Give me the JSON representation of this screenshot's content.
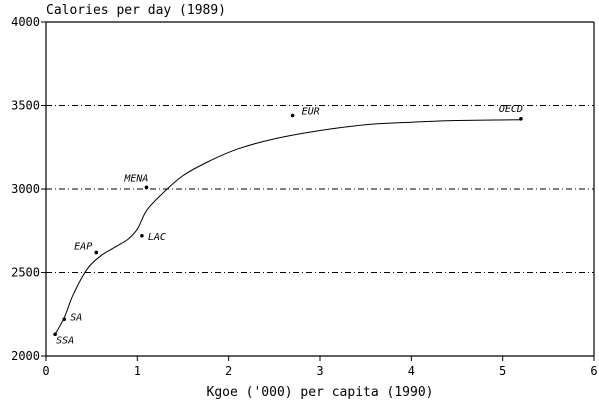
{
  "chart_data": {
    "type": "scatter",
    "title": "",
    "ylabel": "Calories per day (1989)",
    "xlabel": "Kgoe ('000) per capita (1990)",
    "xlim": [
      0,
      6
    ],
    "ylim": [
      2000,
      4000
    ],
    "x_ticks": [
      0,
      1,
      2,
      3,
      4,
      5,
      6
    ],
    "y_ticks": [
      2000,
      2500,
      3000,
      3500,
      4000
    ],
    "grid_lines_y": [
      2500,
      3000,
      3500
    ],
    "points": [
      {
        "label": "SSA",
        "x": 0.1,
        "y": 2130
      },
      {
        "label": "SA",
        "x": 0.2,
        "y": 2220
      },
      {
        "label": "EAP",
        "x": 0.55,
        "y": 2620
      },
      {
        "label": "LAC",
        "x": 1.05,
        "y": 2720
      },
      {
        "label": "MENA",
        "x": 1.1,
        "y": 3010
      },
      {
        "label": "EUR",
        "x": 2.7,
        "y": 3440
      },
      {
        "label": "OECD",
        "x": 5.2,
        "y": 3420
      }
    ],
    "fitted_curve": [
      {
        "x": 0.1,
        "y": 2130
      },
      {
        "x": 0.2,
        "y": 2230
      },
      {
        "x": 0.3,
        "y": 2370
      },
      {
        "x": 0.45,
        "y": 2520
      },
      {
        "x": 0.6,
        "y": 2600
      },
      {
        "x": 0.75,
        "y": 2650
      },
      {
        "x": 0.9,
        "y": 2700
      },
      {
        "x": 1.0,
        "y": 2760
      },
      {
        "x": 1.1,
        "y": 2870
      },
      {
        "x": 1.25,
        "y": 2960
      },
      {
        "x": 1.5,
        "y": 3080
      },
      {
        "x": 1.8,
        "y": 3170
      },
      {
        "x": 2.1,
        "y": 3240
      },
      {
        "x": 2.5,
        "y": 3300
      },
      {
        "x": 3.0,
        "y": 3350
      },
      {
        "x": 3.5,
        "y": 3385
      },
      {
        "x": 4.0,
        "y": 3400
      },
      {
        "x": 4.5,
        "y": 3410
      },
      {
        "x": 5.2,
        "y": 3415
      }
    ]
  }
}
